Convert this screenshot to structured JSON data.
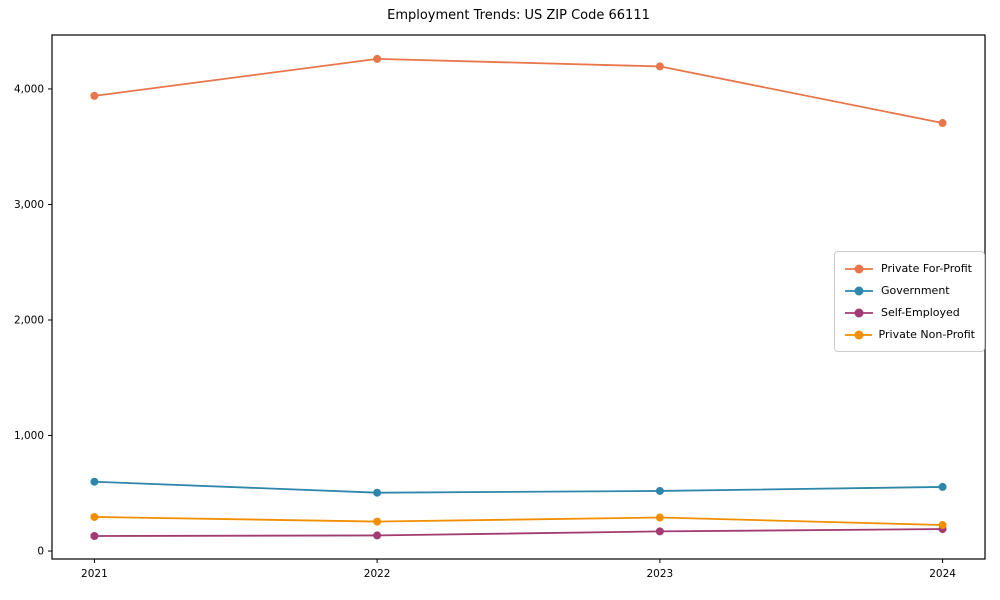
{
  "chart_data": {
    "type": "line",
    "title": "Employment Trends: US ZIP Code 66111",
    "xlabel": "",
    "ylabel": "",
    "x": [
      2021,
      2022,
      2023,
      2024
    ],
    "xtick_labels": [
      "2021",
      "2022",
      "2023",
      "2024"
    ],
    "series": [
      {
        "name": "Private For-Profit",
        "color": "#E8764A",
        "values": [
          3940,
          4260,
          4195,
          3705
        ]
      },
      {
        "name": "Government",
        "color": "#2E86AB",
        "values": [
          600,
          505,
          520,
          555
        ]
      },
      {
        "name": "Self-Employed",
        "color": "#A23B72",
        "values": [
          130,
          135,
          170,
          190
        ]
      },
      {
        "name": "Private Non-Profit",
        "color": "#F18F01",
        "values": [
          295,
          255,
          290,
          225
        ]
      }
    ],
    "ytick_values": [
      0,
      1000,
      2000,
      3000,
      4000
    ],
    "ytick_labels": [
      "0",
      "1,000",
      "2,000",
      "3,000",
      "4,000"
    ],
    "xlim": [
      2020.85,
      2024.15
    ],
    "ylim": [
      -69,
      4467
    ],
    "grid": false,
    "legend_position": "center right",
    "marker": "circle"
  }
}
